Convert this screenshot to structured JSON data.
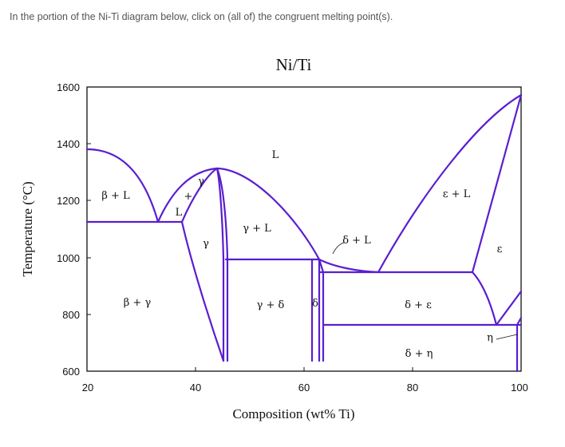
{
  "question": "In the portion of the Ni-Ti diagram below, click on (all of) the congruent melting point(s).",
  "diagram": {
    "title": "Ni/Ti",
    "xlabel": "Composition (wt% Ti)",
    "ylabel": "Temperature (°C)",
    "xticks": [
      "20",
      "40",
      "60",
      "80",
      "100"
    ],
    "yticks": [
      "1600",
      "1400",
      "1200",
      "1000",
      "800",
      "600"
    ],
    "line_color": "#5a1ecf",
    "phase_labels": {
      "L": "L",
      "beta_L": "β + L",
      "gamma_top": "γ",
      "plus": "+",
      "L_small": "L",
      "gamma": "γ",
      "gamma_L": "γ + L",
      "delta_L": "δ + L",
      "epsilon_L": "ε + L",
      "epsilon": "ε",
      "beta_gamma": "β + γ",
      "gamma_delta": "γ + δ",
      "delta": "δ",
      "delta_epsilon": "δ + ε",
      "eta": "η",
      "delta_eta": "δ + η"
    }
  }
}
